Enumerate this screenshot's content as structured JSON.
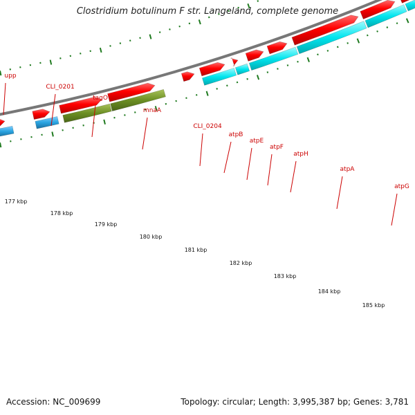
{
  "title": "Clostridium botulinum F str. Langeland, complete genome",
  "footer": {
    "accession": "Accession: NC_009699",
    "stats": "Topology: circular; Length: 3,995,387 bp; Genes: 3,781"
  },
  "colors": {
    "cds_red": "#ff0000",
    "blue_feature": "#29a3e0",
    "olive_feature": "#6b8e23",
    "cyan_feature": "#00e5ee",
    "backbone": "#777777",
    "tick_green": "#1f7a1f",
    "gene_label": "#cc0000"
  },
  "gene_labels": [
    "upp",
    "CLI_0201",
    "tagO",
    "mnaA",
    "CLI_0204",
    "atpB",
    "atpE",
    "atpF",
    "atpH",
    "atpA",
    "atpG"
  ],
  "kbp_labels": [
    "177 kbp",
    "178 kbp",
    "179 kbp",
    "180 kbp",
    "181 kbp",
    "182 kbp",
    "183 kbp",
    "184 kbp",
    "185 kbp"
  ]
}
